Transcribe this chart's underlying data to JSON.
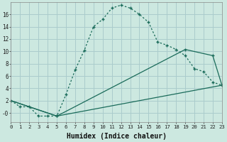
{
  "xlabel": "Humidex (Indice chaleur)",
  "background_color": "#cce8e0",
  "grid_color": "#aacccc",
  "line_color": "#1a6b5a",
  "series1_x": [
    0,
    1,
    2,
    3,
    4,
    5,
    6,
    7,
    8,
    9,
    10,
    11,
    12,
    13,
    14,
    15,
    16,
    17,
    18,
    19,
    20,
    21,
    22,
    23
  ],
  "series1_y": [
    2,
    1,
    1,
    -0.5,
    -0.5,
    -0.5,
    3,
    7,
    10.2,
    14,
    15.2,
    17,
    17.5,
    17,
    16,
    14.7,
    11.5,
    11,
    10.3,
    9.3,
    7.2,
    6.7,
    5,
    4.5
  ],
  "series2_x": [
    0,
    5,
    19,
    22,
    23
  ],
  "series2_y": [
    2,
    -0.5,
    10.3,
    9.3,
    4.5
  ],
  "series3_x": [
    0,
    5,
    23
  ],
  "series3_y": [
    2,
    -0.5,
    4.5
  ],
  "xlim": [
    0,
    23
  ],
  "ylim": [
    -1.5,
    18
  ],
  "yticks": [
    0,
    2,
    4,
    6,
    8,
    10,
    12,
    14,
    16
  ],
  "xticks": [
    0,
    1,
    2,
    3,
    4,
    5,
    6,
    7,
    8,
    9,
    10,
    11,
    12,
    13,
    14,
    15,
    16,
    17,
    18,
    19,
    20,
    21,
    22,
    23
  ]
}
